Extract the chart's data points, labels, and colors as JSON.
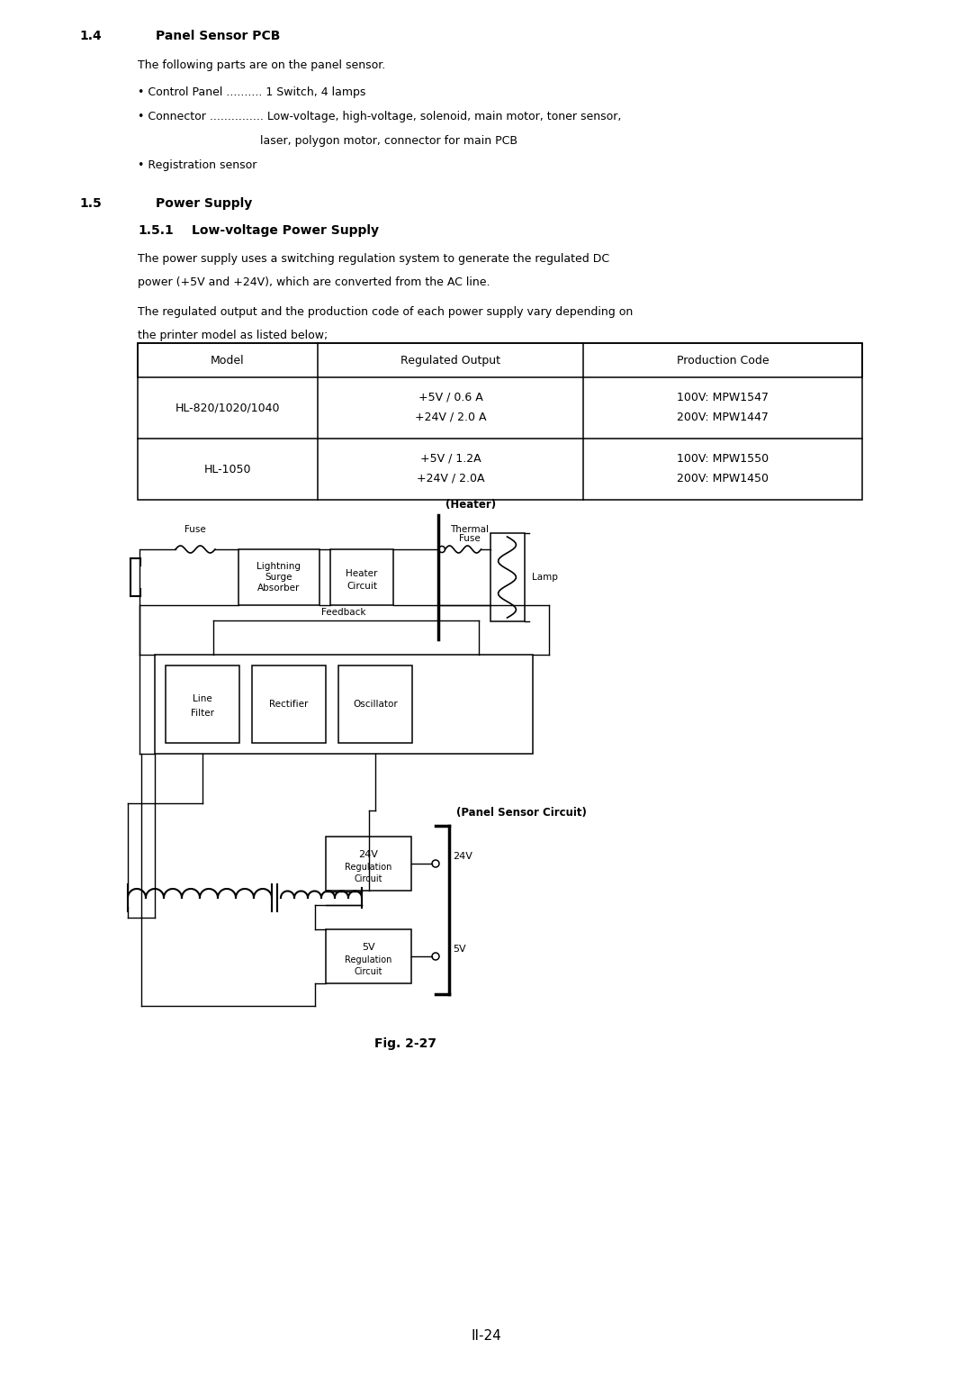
{
  "bg_color": "#ffffff",
  "section_14_title": "1.4",
  "section_14_title2": "Panel Sensor PCB",
  "section_14_body1": "The following parts are on the panel sensor.",
  "bullet1": "• Control Panel .......... 1 Switch, 4 lamps",
  "bullet2": "• Connector ............... Low-voltage, high-voltage, solenoid, main motor, toner sensor,",
  "bullet2b": "                                  laser, polygon motor, connector for main PCB",
  "bullet3": "• Registration sensor",
  "section_15_title": "1.5",
  "section_15_title2": "Power Supply",
  "section_151_title": "1.5.1",
  "section_151_title2": "Low-voltage Power Supply",
  "body1a": "The power supply uses a switching regulation system to generate the regulated DC",
  "body1b": "power (+5V and +24V), which are converted from the AC line.",
  "body2a": "The regulated output and the production code of each power supply vary depending on",
  "body2b": "the printer model as listed below;",
  "th0": "Model",
  "th1": "Regulated Output",
  "th2": "Production Code",
  "r1c0": "HL-820/1020/1040",
  "r1c1a": "+5V / 0.6 A",
  "r1c1b": "+24V / 2.0 A",
  "r1c2a": "100V: MPW1547",
  "r1c2b": "200V: MPW1447",
  "r2c0": "HL-1050",
  "r2c1a": "+5V / 1.2A",
  "r2c1b": "+24V / 2.0A",
  "r2c2a": "100V: MPW1550",
  "r2c2b": "200V: MPW1450",
  "fig_caption": "Fig. 2-27",
  "page_num": "II-24",
  "lbl_heater": "(Heater)",
  "lbl_fuse": "Fuse",
  "lbl_lightning": "Lightning\nSurge\nAbsorber",
  "lbl_heater_circuit": "Heater\nCircuit",
  "lbl_thermal": "Thermal\nFuse",
  "lbl_lamp": "Lamp",
  "lbl_feedback": "Feedback",
  "lbl_line_filter": "Line\nFilter",
  "lbl_rectifier": "Rectifier",
  "lbl_oscillator": "Oscillator",
  "lbl_panel": "(Panel Sensor Circuit)",
  "lbl_24v_box": "24V\nRegulation\nCircuit",
  "lbl_5v_box": "5V\nRegulation\nCircuit",
  "lbl_24v": "24V",
  "lbl_5v": "5V"
}
